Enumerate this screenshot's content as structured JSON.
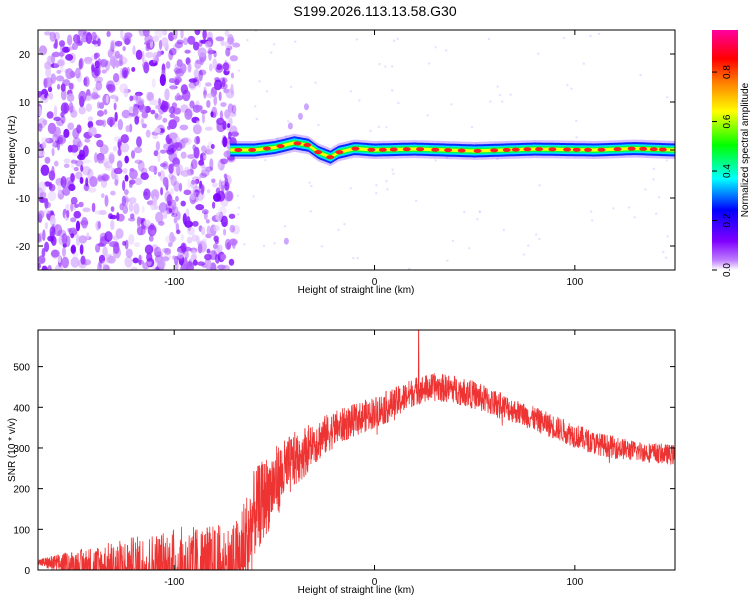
{
  "figure_title": "S199.2026.113.13.58.G30",
  "chart_data": [
    {
      "type": "heatmap",
      "title": "S199.2026.113.13.58.G30",
      "xlabel": "Height of straight line (km)",
      "ylabel": "Frequency (Hz)",
      "xlim": [
        -168,
        150
      ],
      "ylim": [
        -25,
        25
      ],
      "xticks": [
        -100,
        0,
        100
      ],
      "xtick_labels": [
        "-100",
        "0",
        "100"
      ],
      "yticks": [
        -20,
        -10,
        0,
        10,
        20
      ],
      "ytick_labels": [
        "-20",
        "-10",
        "0",
        "10",
        "20"
      ],
      "colorbar": {
        "label": "Normalized spectral amplitude",
        "range": [
          0,
          0.97
        ],
        "ticks": [
          0.0,
          0.2,
          0.4,
          0.6,
          0.8
        ],
        "tick_labels": [
          "0.0",
          "0.2",
          "0.4",
          "0.6",
          "0.8"
        ],
        "colormap": [
          "#ffffff",
          "#8000ff",
          "#0000ff",
          "#00ffff",
          "#00ff00",
          "#ffff00",
          "#ff8000",
          "#ff0000",
          "#ff00a0"
        ]
      },
      "noise_region_x": [
        -168,
        -69
      ],
      "ridge": {
        "x": [
          -72,
          -60,
          -50,
          -40,
          -33,
          -28,
          -22,
          -18,
          -10,
          0,
          20,
          50,
          80,
          110,
          130,
          150
        ],
        "freq": [
          0,
          0,
          0.5,
          1.5,
          1.0,
          -0.5,
          -1.5,
          -0.5,
          0.3,
          0,
          0.2,
          -0.2,
          0.2,
          0,
          0.3,
          0
        ]
      },
      "outliers": [
        {
          "x": -42,
          "freq": 5
        },
        {
          "x": -37,
          "freq": 7
        },
        {
          "x": -34,
          "freq": 9
        },
        {
          "x": -44,
          "freq": -19
        }
      ]
    },
    {
      "type": "line",
      "xlabel": "Height of straight line (km)",
      "ylabel": "SNR (10 * v/v)",
      "xlim": [
        -168,
        150
      ],
      "ylim": [
        0,
        590
      ],
      "xticks": [
        -100,
        0,
        100
      ],
      "xtick_labels": [
        "-100",
        "0",
        "100"
      ],
      "yticks": [
        0,
        100,
        200,
        300,
        400,
        500
      ],
      "ytick_labels": [
        "0",
        "100",
        "200",
        "300",
        "400",
        "500"
      ],
      "color": "#ee3333",
      "envelope": {
        "x": [
          -168,
          -100,
          -70,
          -65,
          -60,
          -50,
          -40,
          -30,
          -20,
          -10,
          0,
          10,
          20,
          30,
          40,
          50,
          60,
          70,
          80,
          90,
          100,
          110,
          120,
          130,
          140,
          150
        ],
        "y": [
          22,
          22,
          25,
          80,
          170,
          240,
          290,
          330,
          360,
          380,
          400,
          420,
          450,
          460,
          455,
          440,
          420,
          400,
          380,
          360,
          340,
          320,
          310,
          300,
          295,
          290
        ]
      },
      "noise_amplitude": [
        8,
        120,
        130,
        140,
        110,
        90,
        70,
        55,
        45,
        40,
        40,
        40,
        35,
        35,
        35,
        35,
        35,
        30,
        30,
        30,
        30,
        28,
        28,
        25,
        25,
        25
      ],
      "peak": {
        "x": 22,
        "y": 590
      }
    }
  ]
}
